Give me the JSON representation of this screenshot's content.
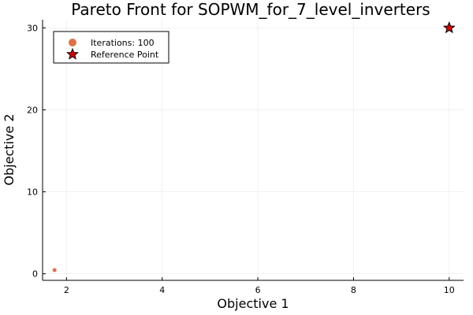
{
  "chart_data": {
    "type": "scatter",
    "title": "Pareto Front for SOPWM_for_7_level_inverters",
    "xlabel": "Objective 1",
    "ylabel": "Objective 2",
    "xlim": [
      1.5,
      10.3
    ],
    "ylim": [
      -0.8,
      31
    ],
    "xticks": [
      2,
      4,
      6,
      8,
      10
    ],
    "yticks": [
      0,
      10,
      20,
      30
    ],
    "grid": true,
    "legend_position": "top-left",
    "series": [
      {
        "name": "Iterations: 100",
        "marker": "circle",
        "color": "#e26f46",
        "points": [
          {
            "x": 1.75,
            "y": 0.45
          }
        ]
      },
      {
        "name": "Reference Point",
        "marker": "star",
        "color": "#e00000",
        "points": [
          {
            "x": 10,
            "y": 30
          }
        ]
      }
    ]
  }
}
